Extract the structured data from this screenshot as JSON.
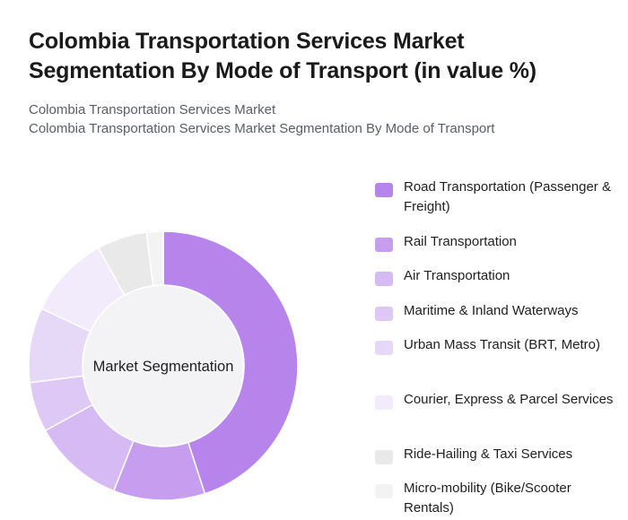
{
  "title": "Colombia Transportation Services Market Segmentation By Mode of Transport (in value %)",
  "subtitle_lines": [
    "Colombia Transportation Services Market",
    "Colombia Transportation Services Market Segmentation By Mode of Transport"
  ],
  "chart_data": {
    "type": "pie",
    "variant": "donut",
    "center_label": "Market Segmentation",
    "unit": "%",
    "categories": [
      "Road Transportation (Passenger & Freight)",
      "Rail Transportation",
      "Air Transportation",
      "Maritime & Inland Waterways",
      "Urban Mass Transit (BRT, Metro)",
      "Courier, Express & Parcel Services",
      "Ride-Hailing & Taxi Services",
      "Micro-mobility (Bike/Scooter Rentals)"
    ],
    "values": [
      45,
      11,
      11,
      6,
      9,
      10,
      6,
      2
    ],
    "colors": [
      "#b784ec",
      "#c79df0",
      "#d6baf4",
      "#ddc8f6",
      "#e6d9f8",
      "#f1ebfb",
      "#e9e9e9",
      "#f3f3f3"
    ],
    "legend_position": "right",
    "start_angle_deg": 0,
    "direction": "clockwise"
  }
}
